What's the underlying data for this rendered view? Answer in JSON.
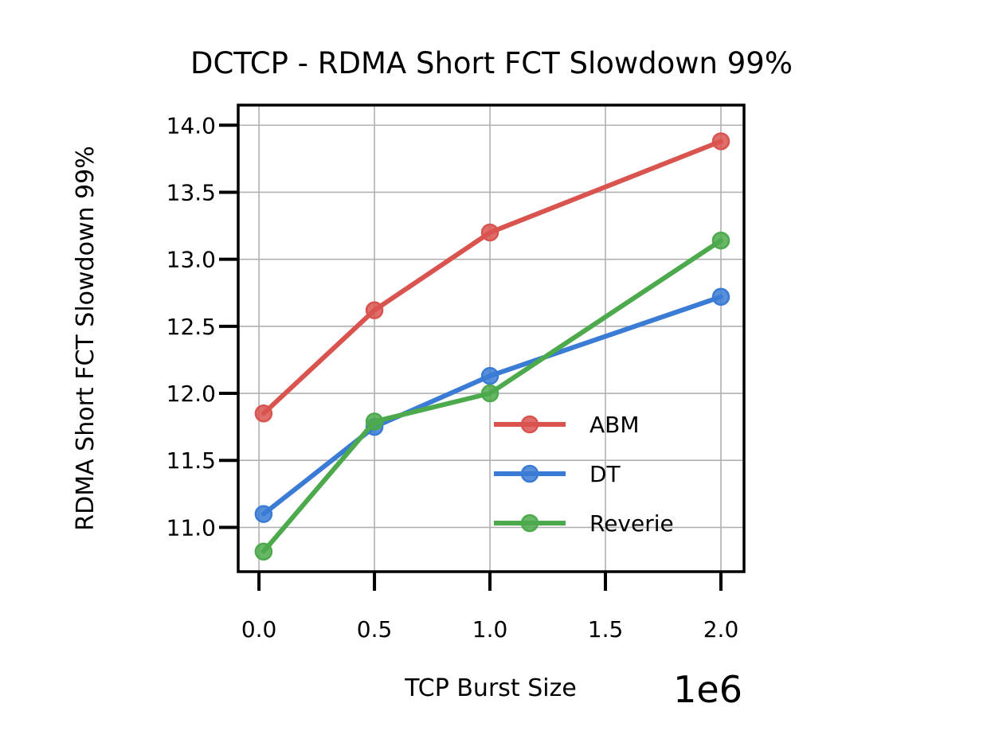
{
  "chart_data": {
    "type": "line",
    "title": "DCTCP - RDMA Short FCT Slowdown 99%",
    "xlabel": "TCP Burst Size",
    "x_offset_text": "1e6",
    "ylabel": "RDMA Short FCT Slowdown 99%",
    "x": [
      20000,
      500000,
      1000000,
      2000000
    ],
    "xlim": [
      -90000,
      2100000
    ],
    "ylim": [
      10.67,
      14.15
    ],
    "xticks": [
      0,
      500000,
      1000000,
      1500000,
      2000000
    ],
    "xtick_labels": [
      "0.0",
      "0.5",
      "1.0",
      "1.5",
      "2.0"
    ],
    "yticks": [
      11.0,
      11.5,
      12.0,
      12.5,
      13.0,
      13.5,
      14.0
    ],
    "ytick_labels": [
      "11.0",
      "11.5",
      "12.0",
      "12.5",
      "13.0",
      "13.5",
      "14.0"
    ],
    "grid": true,
    "legend_position": "lower-right",
    "series": [
      {
        "name": "ABM",
        "color": "#d9534f",
        "values": [
          11.85,
          12.62,
          13.2,
          13.88
        ]
      },
      {
        "name": "DT",
        "color": "#3a7bd5",
        "values": [
          11.1,
          11.75,
          12.13,
          12.72
        ]
      },
      {
        "name": "Reverie",
        "color": "#4caa4c",
        "values": [
          10.82,
          11.79,
          12.0,
          13.14
        ]
      }
    ]
  }
}
